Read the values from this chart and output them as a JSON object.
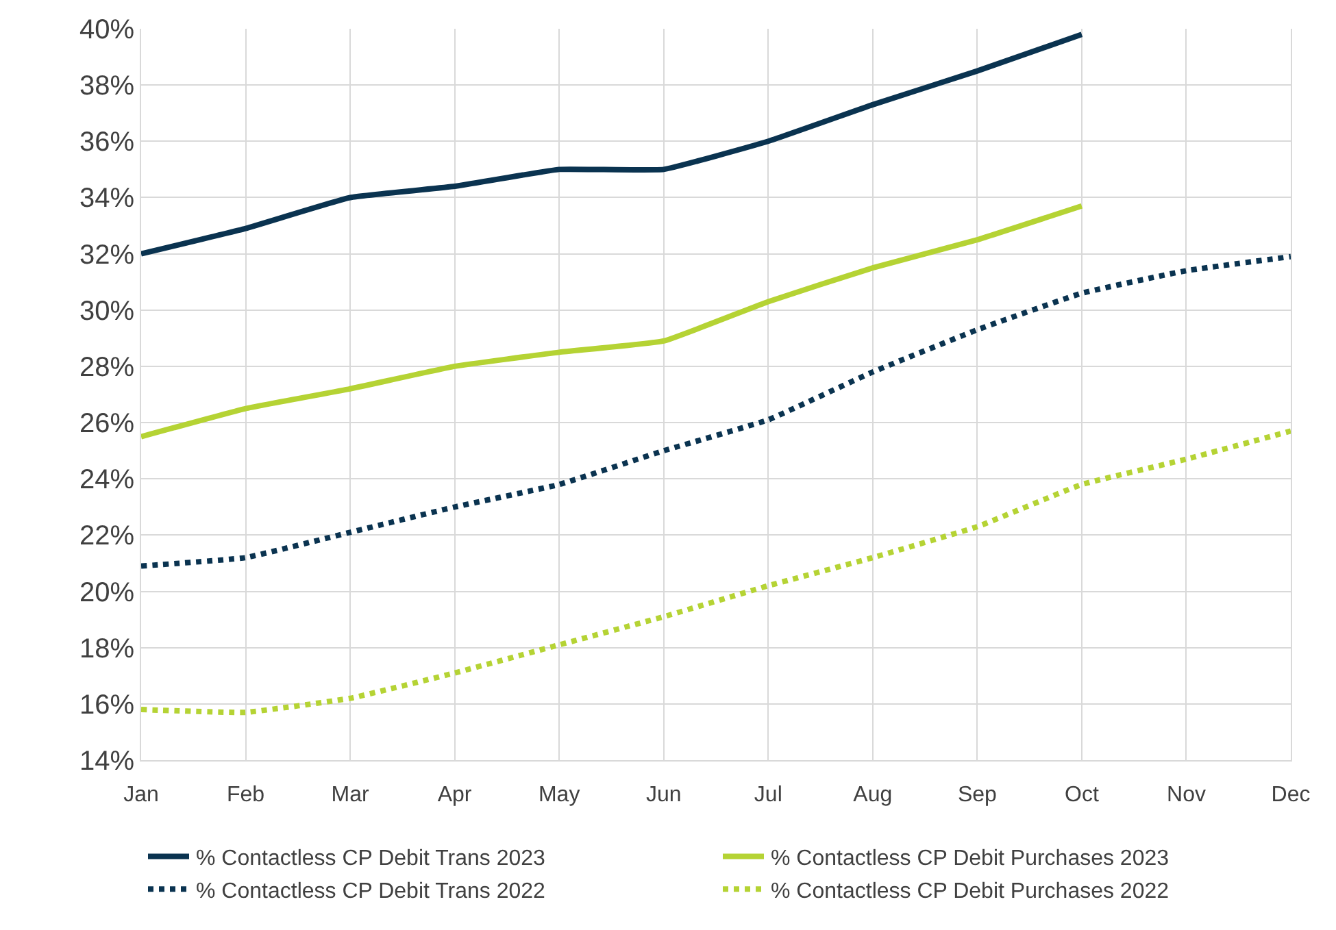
{
  "chart_data": {
    "type": "line",
    "categories": [
      "Jan",
      "Feb",
      "Mar",
      "Apr",
      "May",
      "Jun",
      "Jul",
      "Aug",
      "Sep",
      "Oct",
      "Nov",
      "Dec"
    ],
    "ylim": [
      14,
      40
    ],
    "yticks": [
      {
        "value": 14,
        "label": "14%"
      },
      {
        "value": 16,
        "label": "16%"
      },
      {
        "value": 18,
        "label": "18%"
      },
      {
        "value": 20,
        "label": "20%"
      },
      {
        "value": 22,
        "label": "22%"
      },
      {
        "value": 24,
        "label": "24%"
      },
      {
        "value": 26,
        "label": "26%"
      },
      {
        "value": 28,
        "label": "28%"
      },
      {
        "value": 30,
        "label": "30%"
      },
      {
        "value": 32,
        "label": "32%"
      },
      {
        "value": 34,
        "label": "34%"
      },
      {
        "value": 36,
        "label": "36%"
      },
      {
        "value": 38,
        "label": "38%"
      },
      {
        "value": 40,
        "label": "40%"
      }
    ],
    "grid": true,
    "legend": "bottom",
    "marker": "none",
    "series": [
      {
        "name": "% Contactless CP Debit Trans 2023",
        "color": "#0a3350",
        "line_style": "solid",
        "values": [
          32.0,
          32.9,
          34.0,
          34.4,
          35.0,
          35.0,
          36.0,
          37.3,
          38.5,
          39.8,
          null,
          null
        ]
      },
      {
        "name": "% Contactless CP Debit Purchases 2023",
        "color": "#b5d334",
        "line_style": "solid",
        "values": [
          25.5,
          26.5,
          27.2,
          28.0,
          28.5,
          28.9,
          30.3,
          31.5,
          32.5,
          33.7,
          null,
          null
        ]
      },
      {
        "name": "% Contactless CP Debit Trans 2022",
        "color": "#0a3350",
        "line_style": "dotted",
        "values": [
          20.9,
          21.2,
          22.1,
          23.0,
          23.8,
          25.0,
          26.1,
          27.8,
          29.3,
          30.6,
          31.4,
          31.9
        ]
      },
      {
        "name": "% Contactless CP Debit Purchases 2022",
        "color": "#b5d334",
        "line_style": "dotted",
        "values": [
          15.8,
          15.7,
          16.2,
          17.1,
          18.1,
          19.1,
          20.2,
          21.2,
          22.3,
          23.8,
          24.7,
          25.7
        ]
      }
    ]
  }
}
